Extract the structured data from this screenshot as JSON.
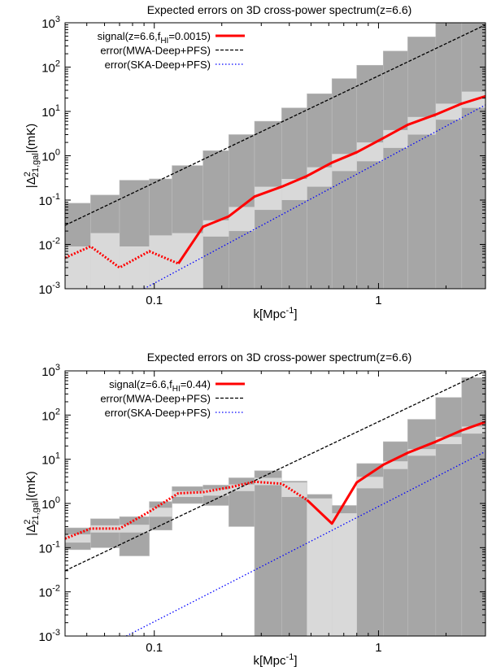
{
  "chart_data": [
    {
      "type": "line",
      "title": "Expected errors on 3D cross-power spectrum(z=6.6)",
      "xlabel": "k[Mpc",
      "xlabel_sup": "-1",
      "xlabel_tail": "]",
      "ylabel_pre": "|Δ",
      "ylabel_sup": "2",
      "ylabel_sub": "21,gal",
      "ylabel_tail": "|(mK)",
      "xscale": "log",
      "yscale": "log",
      "xlim": [
        0.04,
        3.0
      ],
      "ylim": [
        0.001,
        1000
      ],
      "x_ticks": [
        {
          "v": 0.1,
          "label": "0.1"
        },
        {
          "v": 1,
          "label": "1"
        }
      ],
      "y_ticks": [
        {
          "v": 0.001,
          "base": "10",
          "exp": "-3"
        },
        {
          "v": 0.01,
          "base": "10",
          "exp": "-2"
        },
        {
          "v": 0.1,
          "base": "10",
          "exp": "-1"
        },
        {
          "v": 1,
          "base": "10",
          "exp": "0"
        },
        {
          "v": 10,
          "base": "10",
          "exp": "1"
        },
        {
          "v": 100,
          "base": "10",
          "exp": "2"
        },
        {
          "v": 1000,
          "base": "10",
          "exp": "3"
        }
      ],
      "legend_position": "top-left",
      "legend": [
        {
          "pre": "signal(z=6.6,f",
          "sub": "HI",
          "post": "=0.0015)",
          "color": "#ff0000",
          "style": "solid"
        },
        {
          "pre": "error(MWA-Deep+PFS)",
          "sub": "",
          "post": "",
          "color": "#000000",
          "style": "dashed"
        },
        {
          "pre": "error(SKA-Deep+PFS)",
          "sub": "",
          "post": "",
          "color": "#0000ff",
          "style": "dotted"
        }
      ],
      "bins": [
        {
          "x0": 0.04,
          "x1": 0.052,
          "mwa_hi": 0.085,
          "mwa_lo": 0.001,
          "ska_hi": 0.009,
          "ska_lo": 0.001
        },
        {
          "x0": 0.052,
          "x1": 0.07,
          "mwa_hi": 0.13,
          "mwa_lo": 0.001,
          "ska_hi": 0.018,
          "ska_lo": 0.001
        },
        {
          "x0": 0.07,
          "x1": 0.095,
          "mwa_hi": 0.28,
          "mwa_lo": 0.001,
          "ska_hi": 0.009,
          "ska_lo": 0.001
        },
        {
          "x0": 0.095,
          "x1": 0.12,
          "mwa_hi": 0.3,
          "mwa_lo": 0.001,
          "ska_hi": 0.016,
          "ska_lo": 0.001
        },
        {
          "x0": 0.12,
          "x1": 0.165,
          "mwa_hi": 0.6,
          "mwa_lo": 0.001,
          "ska_hi": 0.018,
          "ska_lo": 0.001
        },
        {
          "x0": 0.165,
          "x1": 0.215,
          "mwa_hi": 1.3,
          "mwa_lo": 0.001,
          "ska_hi": 0.035,
          "ska_lo": 0.015
        },
        {
          "x0": 0.215,
          "x1": 0.28,
          "mwa_hi": 3.0,
          "mwa_lo": 0.001,
          "ska_hi": 0.07,
          "ska_lo": 0.02
        },
        {
          "x0": 0.28,
          "x1": 0.37,
          "mwa_hi": 6.0,
          "mwa_lo": 0.001,
          "ska_hi": 0.2,
          "ska_lo": 0.06
        },
        {
          "x0": 0.37,
          "x1": 0.48,
          "mwa_hi": 12,
          "mwa_lo": 0.001,
          "ska_hi": 0.3,
          "ska_lo": 0.1
        },
        {
          "x0": 0.48,
          "x1": 0.62,
          "mwa_hi": 25,
          "mwa_lo": 0.001,
          "ska_hi": 0.55,
          "ska_lo": 0.2
        },
        {
          "x0": 0.62,
          "x1": 0.8,
          "mwa_hi": 55,
          "mwa_lo": 0.001,
          "ska_hi": 1.1,
          "ska_lo": 0.45
        },
        {
          "x0": 0.8,
          "x1": 1.05,
          "mwa_hi": 110,
          "mwa_lo": 0.001,
          "ska_hi": 2.0,
          "ska_lo": 0.75
        },
        {
          "x0": 1.05,
          "x1": 1.35,
          "mwa_hi": 230,
          "mwa_lo": 0.001,
          "ska_hi": 3.8,
          "ska_lo": 1.5
        },
        {
          "x0": 1.35,
          "x1": 1.8,
          "mwa_hi": 480,
          "mwa_lo": 0.001,
          "ska_hi": 7.5,
          "ska_lo": 3.0
        },
        {
          "x0": 1.8,
          "x1": 2.35,
          "mwa_hi": 1000,
          "mwa_lo": 0.001,
          "ska_hi": 15,
          "ska_lo": 6.5
        },
        {
          "x0": 2.35,
          "x1": 3.0,
          "mwa_hi": 1000,
          "mwa_lo": 0.001,
          "ska_hi": 28,
          "ska_lo": 12
        }
      ],
      "signal_dotted": {
        "x": [
          0.04,
          0.052,
          0.07,
          0.095,
          0.128
        ],
        "y": [
          0.005,
          0.009,
          0.003,
          0.007,
          0.0037
        ]
      },
      "signal_solid": {
        "x": [
          0.128,
          0.165,
          0.215,
          0.28,
          0.37,
          0.48,
          0.62,
          0.8,
          1.05,
          1.35,
          1.8,
          2.35,
          3.0
        ],
        "y": [
          0.0037,
          0.025,
          0.043,
          0.12,
          0.2,
          0.35,
          0.7,
          1.2,
          2.5,
          5.0,
          8.5,
          15,
          22
        ]
      },
      "mwa_line": {
        "x": [
          0.04,
          3.0
        ],
        "y": [
          0.027,
          900
        ]
      },
      "ska_line": {
        "x": [
          0.09,
          3.0
        ],
        "y": [
          0.001,
          14
        ]
      }
    },
    {
      "type": "line",
      "title": "Expected errors on 3D cross-power spectrum(z=6.6)",
      "xlabel": "k[Mpc",
      "xlabel_sup": "-1",
      "xlabel_tail": "]",
      "ylabel_pre": "|Δ",
      "ylabel_sup": "2",
      "ylabel_sub": "21,gal",
      "ylabel_tail": "|(mK)",
      "xscale": "log",
      "yscale": "log",
      "xlim": [
        0.04,
        3.0
      ],
      "ylim": [
        0.001,
        1000
      ],
      "x_ticks": [
        {
          "v": 0.1,
          "label": "0.1"
        },
        {
          "v": 1,
          "label": "1"
        }
      ],
      "y_ticks": [
        {
          "v": 0.001,
          "base": "10",
          "exp": "-3"
        },
        {
          "v": 0.01,
          "base": "10",
          "exp": "-2"
        },
        {
          "v": 0.1,
          "base": "10",
          "exp": "-1"
        },
        {
          "v": 1,
          "base": "10",
          "exp": "0"
        },
        {
          "v": 10,
          "base": "10",
          "exp": "1"
        },
        {
          "v": 100,
          "base": "10",
          "exp": "2"
        },
        {
          "v": 1000,
          "base": "10",
          "exp": "3"
        }
      ],
      "legend_position": "top-left",
      "legend": [
        {
          "pre": "signal(z=6.6,f",
          "sub": "HI",
          "post": "=0.44)",
          "color": "#ff0000",
          "style": "solid"
        },
        {
          "pre": "error(MWA-Deep+PFS)",
          "sub": "",
          "post": "",
          "color": "#000000",
          "style": "dashed"
        },
        {
          "pre": "error(SKA-Deep+PFS)",
          "sub": "",
          "post": "",
          "color": "#0000ff",
          "style": "dotted"
        }
      ],
      "bins": [
        {
          "x0": 0.04,
          "x1": 0.052,
          "mwa_hi": 0.28,
          "mwa_lo": 0.09,
          "ska_hi": 0.2,
          "ska_lo": 0.13
        },
        {
          "x0": 0.052,
          "x1": 0.07,
          "mwa_hi": 0.45,
          "mwa_lo": 0.1,
          "ska_hi": 0.32,
          "ska_lo": 0.22
        },
        {
          "x0": 0.07,
          "x1": 0.095,
          "mwa_hi": 0.5,
          "mwa_lo": 0.065,
          "ska_hi": 0.33,
          "ska_lo": 0.22
        },
        {
          "x0": 0.095,
          "x1": 0.12,
          "mwa_hi": 1.1,
          "mwa_lo": 0.25,
          "ska_hi": 0.8,
          "ska_lo": 0.5
        },
        {
          "x0": 0.12,
          "x1": 0.165,
          "mwa_hi": 2.4,
          "mwa_lo": 1.0,
          "ska_hi": 1.9,
          "ska_lo": 1.4
        },
        {
          "x0": 0.165,
          "x1": 0.215,
          "mwa_hi": 2.6,
          "mwa_lo": 0.9,
          "ska_hi": 2.1,
          "ska_lo": 1.5
        },
        {
          "x0": 0.215,
          "x1": 0.28,
          "mwa_hi": 3.8,
          "mwa_lo": 0.3,
          "ska_hi": 2.7,
          "ska_lo": 1.9
        },
        {
          "x0": 0.28,
          "x1": 0.37,
          "mwa_hi": 5.5,
          "mwa_lo": 0.001,
          "ska_hi": 3.8,
          "ska_lo": 2.6
        },
        {
          "x0": 0.37,
          "x1": 0.48,
          "mwa_hi": 3.2,
          "mwa_lo": 0.001,
          "ska_hi": 3.0,
          "ska_lo": 1.4
        },
        {
          "x0": 0.48,
          "x1": 0.62,
          "mwa_hi": 1.6,
          "mwa_lo": 0.001,
          "ska_hi": 1.3,
          "ska_lo": 0.001
        },
        {
          "x0": 0.62,
          "x1": 0.8,
          "mwa_hi": 0.9,
          "mwa_lo": 0.001,
          "ska_hi": 0.6,
          "ska_lo": 0.001
        },
        {
          "x0": 0.8,
          "x1": 1.05,
          "mwa_hi": 8.0,
          "mwa_lo": 0.001,
          "ska_hi": 4.0,
          "ska_lo": 2.2
        },
        {
          "x0": 1.05,
          "x1": 1.35,
          "mwa_hi": 25,
          "mwa_lo": 0.001,
          "ska_hi": 9.0,
          "ska_lo": 6.0
        },
        {
          "x0": 1.35,
          "x1": 1.8,
          "mwa_hi": 80,
          "mwa_lo": 0.001,
          "ska_hi": 17,
          "ska_lo": 12
        },
        {
          "x0": 1.8,
          "x1": 2.35,
          "mwa_hi": 250,
          "mwa_lo": 0.001,
          "ska_hi": 32,
          "ska_lo": 22
        },
        {
          "x0": 2.35,
          "x1": 3.0,
          "mwa_hi": 700,
          "mwa_lo": 0.001,
          "ska_hi": 55,
          "ska_lo": 38
        }
      ],
      "signal_dotted": {
        "x": [
          0.04,
          0.052,
          0.07,
          0.095,
          0.128,
          0.165,
          0.215,
          0.28,
          0.37,
          0.48
        ],
        "y": [
          0.16,
          0.27,
          0.27,
          0.65,
          1.7,
          1.8,
          2.3,
          3.1,
          2.8,
          1.2
        ]
      },
      "signal_solid": {
        "x": [
          0.48,
          0.62,
          0.8,
          1.05,
          1.35,
          1.8,
          2.35,
          3.0
        ],
        "y": [
          1.2,
          0.35,
          3.0,
          7.5,
          14,
          25,
          45,
          70
        ]
      },
      "mwa_line": {
        "x": [
          0.04,
          3.0
        ],
        "y": [
          0.03,
          1000
        ]
      },
      "ska_line": {
        "x": [
          0.075,
          3.0
        ],
        "y": [
          0.001,
          15
        ]
      }
    }
  ]
}
